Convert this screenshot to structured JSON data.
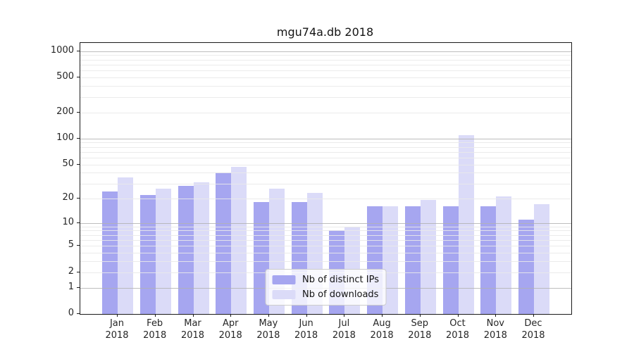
{
  "title": "mgu74a.db 2018",
  "colors": {
    "ips_bar": "#a6a6f0",
    "downloads_bar": "#dbdbf8",
    "grid_major": "#b2b2b2",
    "grid_minor": "#e9e9e9",
    "spine": "#1a1a1a"
  },
  "legend": {
    "items": [
      {
        "label": "Nb of distinct IPs",
        "series": "ips"
      },
      {
        "label": "Nb of downloads",
        "series": "downloads"
      }
    ]
  },
  "chart_data": {
    "type": "bar",
    "title": "mgu74a.db 2018",
    "categories": [
      "Jan 2018",
      "Feb 2018",
      "Mar 2018",
      "Apr 2018",
      "May 2018",
      "Jun 2018",
      "Jul 2018",
      "Aug 2018",
      "Sep 2018",
      "Oct 2018",
      "Nov 2018",
      "Dec 2018"
    ],
    "series": [
      {
        "name": "Nb of distinct IPs",
        "color": "#a6a6f0",
        "values": [
          24,
          22,
          28,
          40,
          18,
          18,
          8,
          16,
          16,
          16,
          16,
          11
        ]
      },
      {
        "name": "Nb of downloads",
        "color": "#dbdbf8",
        "values": [
          35,
          26,
          31,
          47,
          26,
          23,
          9,
          16,
          19,
          110,
          21,
          17
        ]
      }
    ],
    "xlabel": "",
    "ylabel": "",
    "yscale": "log1p",
    "ylim": [
      0,
      1250
    ],
    "y_tick_values": [
      0,
      1,
      2,
      5,
      10,
      20,
      50,
      100,
      200,
      500,
      1000
    ],
    "y_tick_labels": [
      "0",
      "1",
      "2",
      "5",
      "10",
      "20",
      "50",
      "100",
      "200",
      "500",
      "1000"
    ],
    "grid": "horizontal major+minor, drawn above bars",
    "legend_position": "lower center"
  }
}
